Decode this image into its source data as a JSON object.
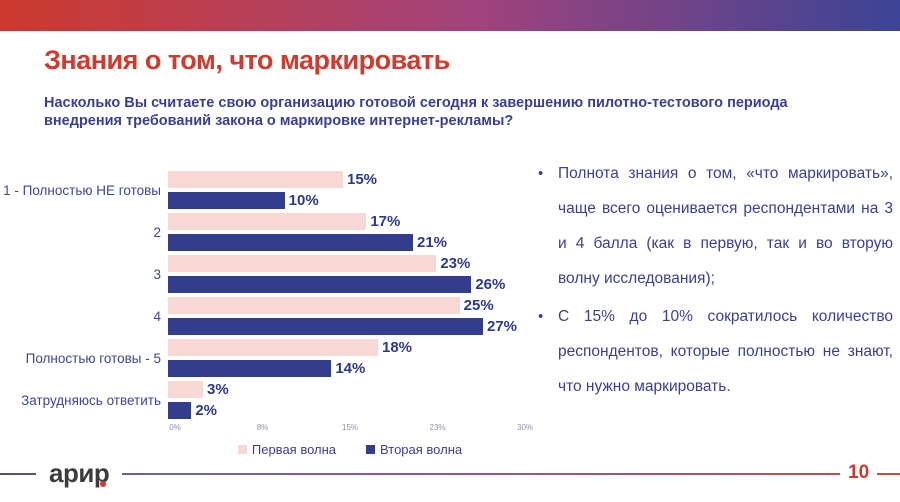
{
  "header": {
    "title": "Знания о том, что маркировать",
    "subtitle": "Насколько Вы считаете свою организацию готовой сегодня к завершению пилотно-тестового периода внедрения требований закона о маркировке интернет-рекламы?"
  },
  "chart_data": {
    "type": "bar",
    "orientation": "horizontal",
    "categories": [
      "1 - Полностью НЕ готовы",
      "2",
      "3",
      "4",
      "Полностью готовы - 5",
      "Затрудняюсь ответить"
    ],
    "series": [
      {
        "name": "Первая волна",
        "color": "#f7d8d5",
        "values": [
          15,
          17,
          23,
          25,
          18,
          3
        ]
      },
      {
        "name": "Вторая волна",
        "color": "#333d8d",
        "values": [
          10,
          21,
          26,
          27,
          14,
          2
        ]
      }
    ],
    "value_suffix": "%",
    "x_ticks": [
      "0%",
      "8%",
      "15%",
      "23%",
      "30%"
    ],
    "xlim": [
      0,
      30
    ],
    "grid": false,
    "legend_position": "bottom"
  },
  "insights": {
    "bullets": [
      "Полнота знания о том, «что маркировать», чаще всего оценивается респондентами на 3 и  4 балла (как в первую, так и во вторую волну исследования);",
      "С 15% до 10% сократилось количество респондентов, которые полностью не знают, что нужно маркировать."
    ],
    "bullet_glyph": "•"
  },
  "footer": {
    "logo_text": "арир",
    "page_number": "10"
  },
  "colors": {
    "accent_red": "#d13a2e",
    "text_blue": "#3a3f94",
    "bar_pink": "#f7d8d5",
    "bar_blue": "#333d8d",
    "topbar_gradient_left": "#cd3a2d",
    "topbar_gradient_right": "#3b4496"
  }
}
